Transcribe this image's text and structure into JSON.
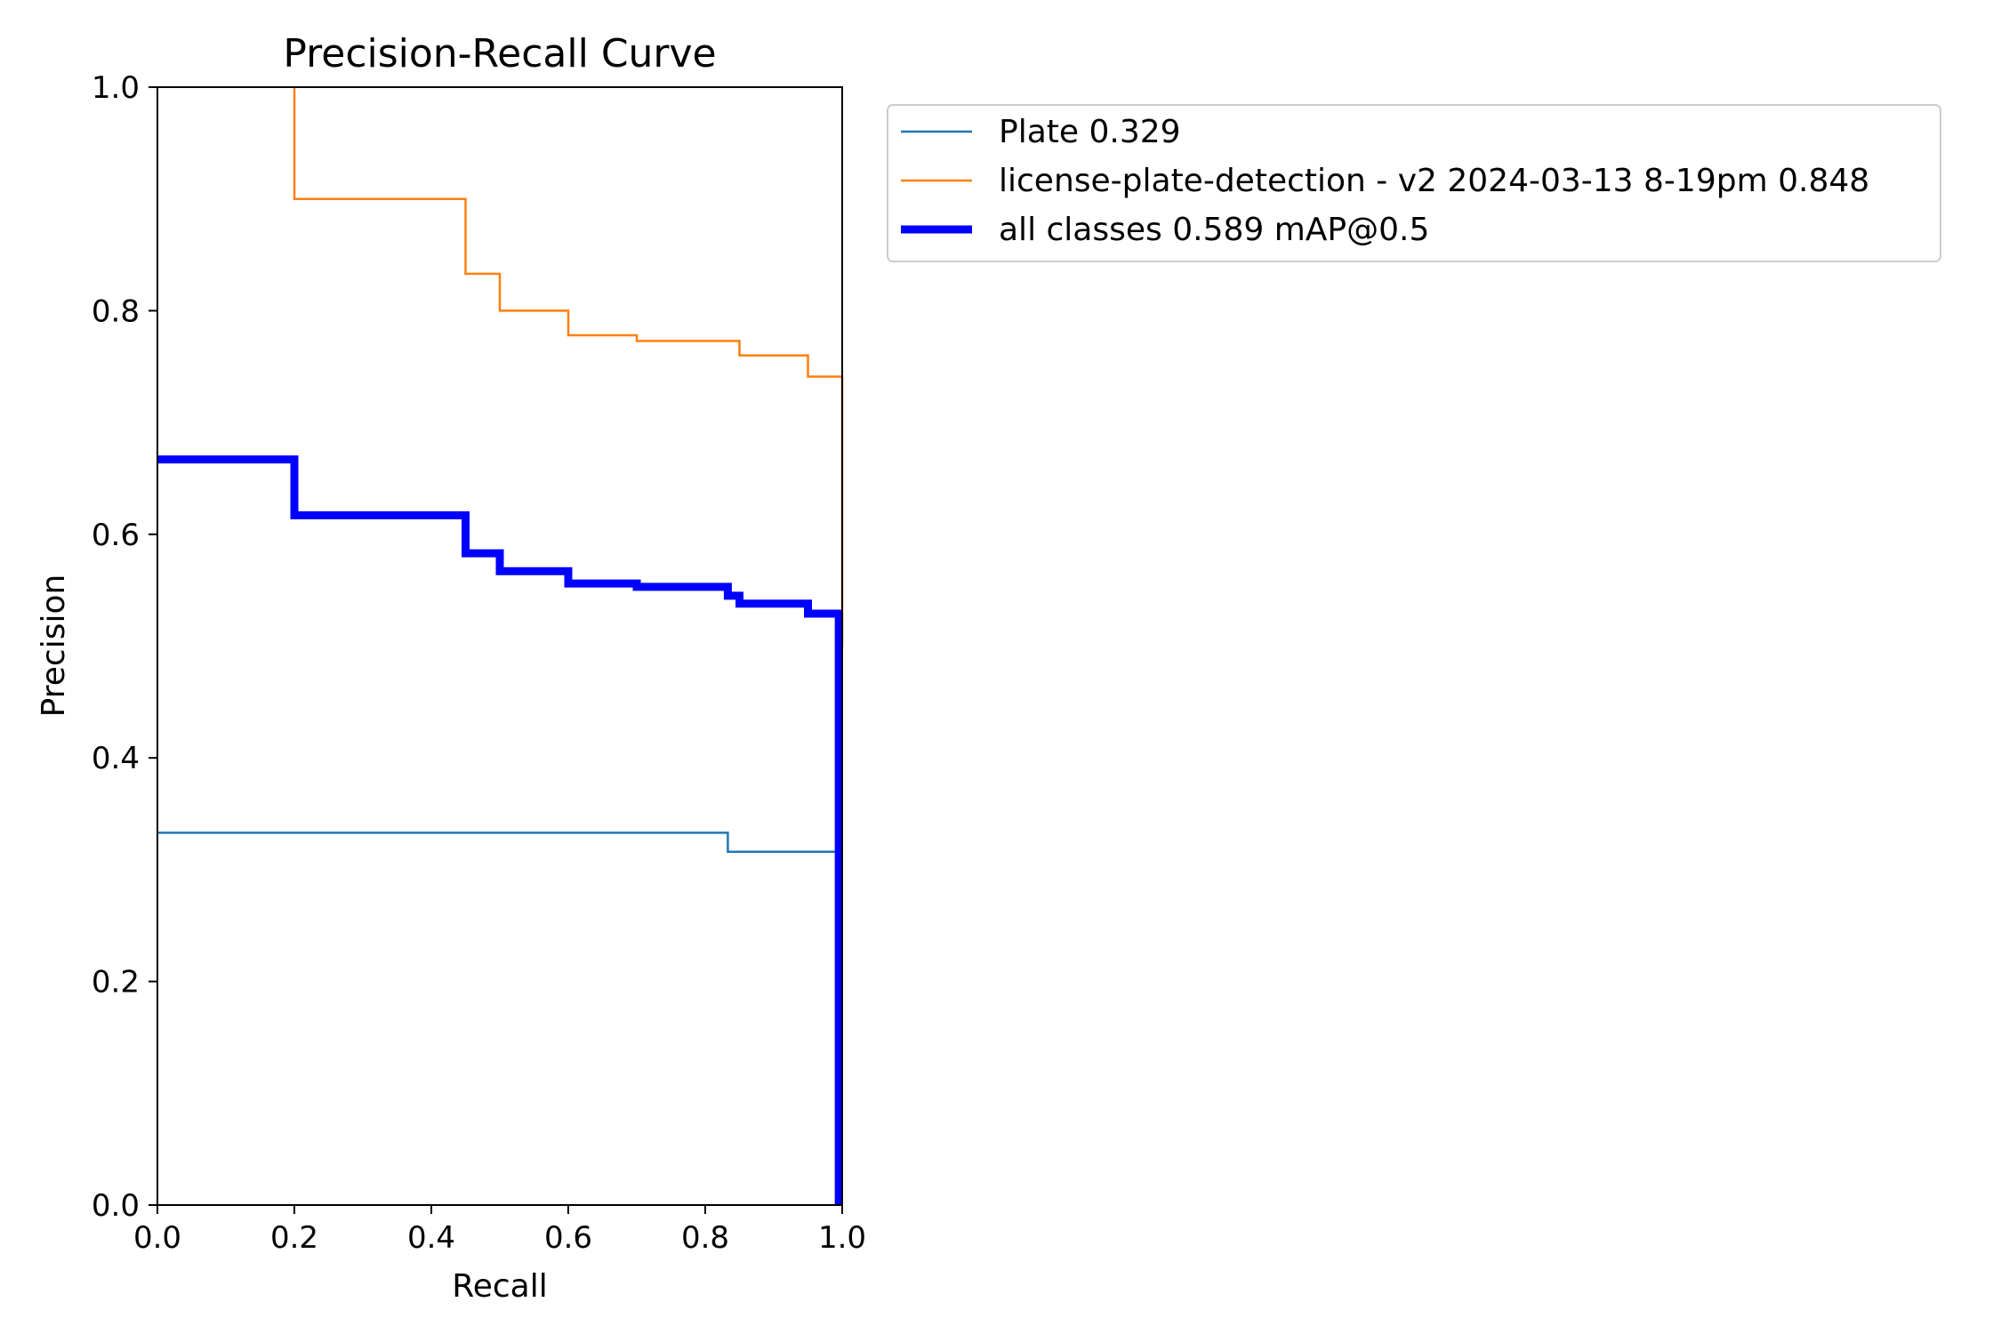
{
  "chart_data": {
    "type": "line",
    "title": "Precision-Recall Curve",
    "xlabel": "Recall",
    "ylabel": "Precision",
    "xlim": [
      0.0,
      1.0
    ],
    "ylim": [
      0.0,
      1.0
    ],
    "xticks": [
      "0.0",
      "0.2",
      "0.4",
      "0.6",
      "0.8",
      "1.0"
    ],
    "yticks": [
      "0.0",
      "0.2",
      "0.4",
      "0.6",
      "0.8",
      "1.0"
    ],
    "grid": false,
    "legend_position": "outside-upper-right",
    "series": [
      {
        "name": "Plate 0.329",
        "color": "#1f77b4",
        "linewidth": "thin",
        "x": [
          0.0,
          0.833,
          0.833,
          0.995,
          0.995,
          1.0
        ],
        "y": [
          0.333,
          0.333,
          0.316,
          0.316,
          0.0,
          0.0
        ]
      },
      {
        "name": "license-plate-detection - v2 2024-03-13 8-19pm 0.848",
        "color": "#ff7f0e",
        "linewidth": "thin",
        "x": [
          0.2,
          0.2,
          0.45,
          0.45,
          0.5,
          0.5,
          0.6,
          0.6,
          0.7,
          0.7,
          0.85,
          0.85,
          0.95,
          0.95,
          1.0,
          1.0
        ],
        "y": [
          1.0,
          0.9,
          0.9,
          0.833,
          0.833,
          0.8,
          0.8,
          0.778,
          0.778,
          0.773,
          0.773,
          0.76,
          0.76,
          0.741,
          0.741,
          0.5
        ]
      },
      {
        "name": "all classes 0.589 mAP@0.5",
        "color": "#0000ff",
        "linewidth": "thick",
        "x": [
          0.0,
          0.2,
          0.2,
          0.45,
          0.45,
          0.5,
          0.5,
          0.6,
          0.6,
          0.7,
          0.7,
          0.833,
          0.833,
          0.85,
          0.85,
          0.95,
          0.95,
          0.995,
          0.995
        ],
        "y": [
          0.667,
          0.667,
          0.617,
          0.617,
          0.583,
          0.583,
          0.567,
          0.567,
          0.556,
          0.556,
          0.553,
          0.553,
          0.545,
          0.545,
          0.538,
          0.538,
          0.529,
          0.529,
          0.0
        ]
      }
    ]
  }
}
